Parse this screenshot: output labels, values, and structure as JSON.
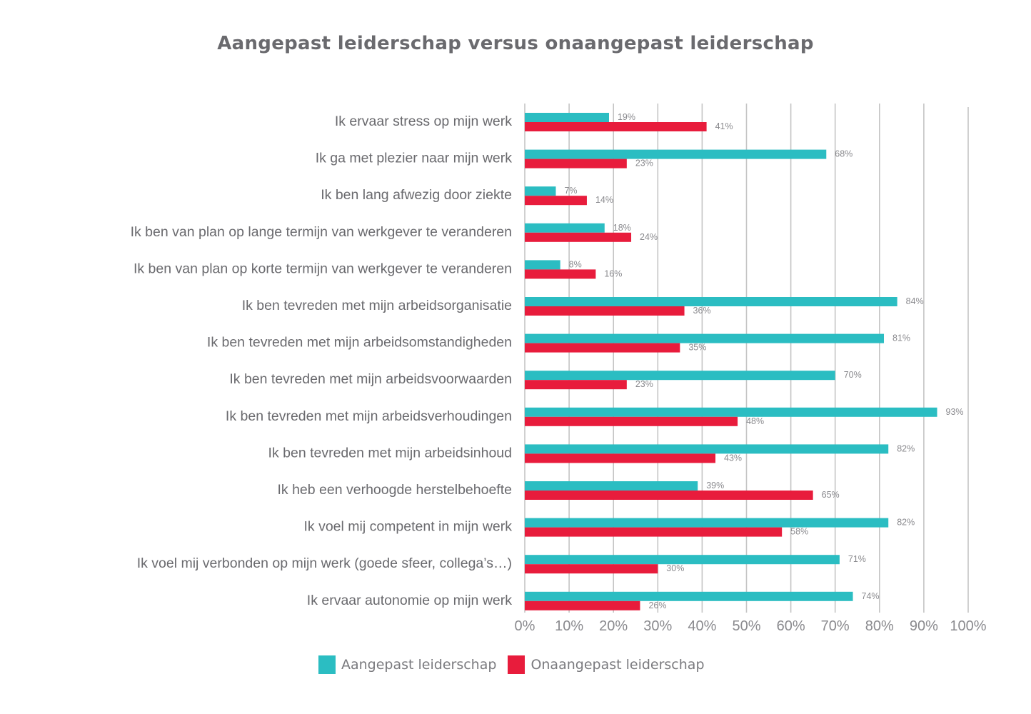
{
  "chart_data": {
    "type": "bar",
    "orientation": "horizontal",
    "title": "Aangepast leiderschap versus onaangepast leiderschap",
    "xlabel": "",
    "ylabel": "",
    "xlim": [
      0,
      100
    ],
    "x_ticks": [
      "0%",
      "10%",
      "20%",
      "30%",
      "40%",
      "50%",
      "60%",
      "70%",
      "80%",
      "90%",
      "100%"
    ],
    "grid": "vertical",
    "legend_position": "bottom",
    "categories": [
      "Ik ervaar stress op mijn werk",
      "Ik ga met plezier naar mijn werk",
      "Ik ben lang afwezig door ziekte",
      "Ik ben van plan op lange termijn van werkgever te veranderen",
      "Ik ben van plan op korte termijn van werkgever te veranderen",
      "Ik ben tevreden met mijn arbeidsorganisatie",
      "Ik ben tevreden met mijn arbeidsomstandigheden",
      "Ik ben tevreden met mijn arbeidsvoorwaarden",
      "Ik ben tevreden met mijn arbeidsverhoudingen",
      "Ik ben tevreden met mijn arbeidsinhoud",
      "Ik heb een verhoogde herstelbehoefte",
      "Ik voel mij competent in mijn werk",
      "Ik voel mij verbonden op mijn werk (goede sfeer, collega’s…)",
      "Ik ervaar autonomie op mijn werk"
    ],
    "series": [
      {
        "name": "Aangepast leiderschap",
        "color": "#2bbdc2",
        "values": [
          19,
          68,
          7,
          18,
          8,
          84,
          81,
          70,
          93,
          82,
          39,
          82,
          71,
          74
        ],
        "labels": [
          "19%",
          "68%",
          "7%",
          "18%",
          "8%",
          "84%",
          "81%",
          "70%",
          "93%",
          "82%",
          "39%",
          "82%",
          "71%",
          "74%"
        ]
      },
      {
        "name": "Onaangepast leiderschap",
        "color": "#e81c3c",
        "values": [
          41,
          23,
          14,
          24,
          16,
          36,
          35,
          23,
          48,
          43,
          65,
          58,
          30,
          26
        ],
        "labels": [
          "41%",
          "23%",
          "14%",
          "24%",
          "16%",
          "36%",
          "35%",
          "23%",
          "48%",
          "43%",
          "65%",
          "58%",
          "30%",
          "26%"
        ]
      }
    ]
  },
  "legend": {
    "items": [
      {
        "label": "Aangepast leiderschap",
        "color": "#2bbdc2"
      },
      {
        "label": "Onaangepast leiderschap",
        "color": "#e81c3c"
      }
    ]
  }
}
